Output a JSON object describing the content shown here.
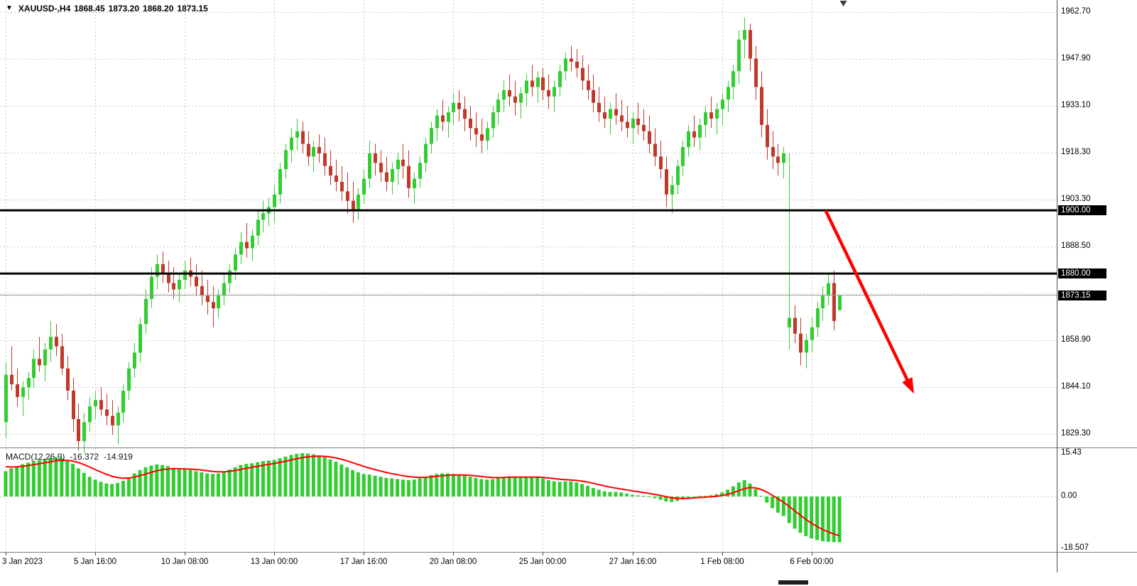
{
  "header": {
    "symbol_period": "XAUUSD-,H4",
    "open": "1868.45",
    "high": "1873.20",
    "low": "1868.20",
    "close": "1873.15"
  },
  "icons": {
    "one_click_collapse": "▼"
  },
  "chart_data": {
    "type": "candlestick",
    "symbol": "XAUUSD-",
    "timeframe": "H4",
    "ohlc_current": {
      "open": 1868.45,
      "high": 1873.2,
      "low": 1868.2,
      "close": 1873.15
    },
    "price_axis": {
      "labels": [
        "1962.70",
        "1947.90",
        "1933.10",
        "1918.30",
        "1903.30",
        "1888.50",
        "1858.90",
        "1844.10",
        "1829.30"
      ],
      "values": [
        1962.7,
        1947.9,
        1933.1,
        1918.3,
        1903.3,
        1888.5,
        1858.9,
        1844.1,
        1829.3
      ],
      "hidden_grid_value": 1873.7,
      "ylim": [
        1825.0,
        1966.5
      ]
    },
    "time_axis": {
      "labels": [
        {
          "text": "3 Jan 2023",
          "bar": 0
        },
        {
          "text": "5 Jan 16:00",
          "bar": 16
        },
        {
          "text": "10 Jan 08:00",
          "bar": 32
        },
        {
          "text": "13 Jan 00:00",
          "bar": 48
        },
        {
          "text": "17 Jan 16:00",
          "bar": 64
        },
        {
          "text": "20 Jan 08:00",
          "bar": 80
        },
        {
          "text": "25 Jan 00:00",
          "bar": 96
        },
        {
          "text": "27 Jan 16:00",
          "bar": 112
        },
        {
          "text": "1 Feb 08:00",
          "bar": 128
        },
        {
          "text": "6 Feb 00:00",
          "bar": 144
        }
      ]
    },
    "levels": [
      {
        "label": "1900.00",
        "price": 1900.0
      },
      {
        "label": "1880.00",
        "price": 1880.0
      }
    ],
    "current_price": {
      "label": "1873.15",
      "price": 1873.15
    },
    "candles": [
      [
        1833,
        1852,
        1828,
        1848
      ],
      [
        1848,
        1857,
        1843,
        1845
      ],
      [
        1845,
        1850,
        1838,
        1841
      ],
      [
        1841,
        1846,
        1835,
        1844
      ],
      [
        1844,
        1849,
        1840,
        1847
      ],
      [
        1847,
        1856,
        1844,
        1853
      ],
      [
        1853,
        1860,
        1849,
        1851
      ],
      [
        1851,
        1858,
        1846,
        1856
      ],
      [
        1856,
        1865,
        1852,
        1860
      ],
      [
        1860,
        1864,
        1854,
        1857
      ],
      [
        1857,
        1861,
        1848,
        1850
      ],
      [
        1850,
        1854,
        1840,
        1843
      ],
      [
        1843,
        1847,
        1830,
        1834
      ],
      [
        1834,
        1839,
        1824,
        1827
      ],
      [
        1827,
        1836,
        1823,
        1833
      ],
      [
        1833,
        1841,
        1830,
        1838
      ],
      [
        1838,
        1843,
        1834,
        1840
      ],
      [
        1840,
        1844,
        1835,
        1837
      ],
      [
        1837,
        1842,
        1832,
        1835
      ],
      [
        1835,
        1840,
        1829,
        1832
      ],
      [
        1832,
        1838,
        1826,
        1836
      ],
      [
        1836,
        1845,
        1833,
        1843
      ],
      [
        1843,
        1852,
        1840,
        1850
      ],
      [
        1850,
        1858,
        1847,
        1855
      ],
      [
        1855,
        1866,
        1852,
        1864
      ],
      [
        1864,
        1875,
        1861,
        1872
      ],
      [
        1872,
        1882,
        1869,
        1879
      ],
      [
        1879,
        1886,
        1875,
        1883
      ],
      [
        1883,
        1887,
        1877,
        1880
      ],
      [
        1880,
        1884,
        1874,
        1877
      ],
      [
        1877,
        1882,
        1872,
        1875
      ],
      [
        1875,
        1880,
        1871,
        1878
      ],
      [
        1878,
        1884,
        1875,
        1881
      ],
      [
        1881,
        1885,
        1876,
        1879
      ],
      [
        1879,
        1883,
        1873,
        1876
      ],
      [
        1876,
        1881,
        1870,
        1873
      ],
      [
        1873,
        1878,
        1867,
        1871
      ],
      [
        1871,
        1876,
        1863,
        1869
      ],
      [
        1869,
        1875,
        1866,
        1873
      ],
      [
        1873,
        1880,
        1870,
        1877
      ],
      [
        1877,
        1883,
        1874,
        1881
      ],
      [
        1881,
        1888,
        1878,
        1886
      ],
      [
        1886,
        1893,
        1883,
        1890
      ],
      [
        1890,
        1896,
        1885,
        1888
      ],
      [
        1888,
        1894,
        1884,
        1892
      ],
      [
        1892,
        1900,
        1889,
        1897
      ],
      [
        1897,
        1903,
        1893,
        1899
      ],
      [
        1899,
        1904,
        1895,
        1901
      ],
      [
        1901,
        1908,
        1896,
        1905
      ],
      [
        1905,
        1915,
        1902,
        1913
      ],
      [
        1913,
        1921,
        1910,
        1919
      ],
      [
        1919,
        1926,
        1915,
        1923
      ],
      [
        1923,
        1929,
        1919,
        1925
      ],
      [
        1925,
        1928,
        1918,
        1921
      ],
      [
        1921,
        1925,
        1914,
        1917
      ],
      [
        1917,
        1922,
        1912,
        1920
      ],
      [
        1920,
        1924,
        1915,
        1918
      ],
      [
        1918,
        1923,
        1911,
        1914
      ],
      [
        1914,
        1919,
        1908,
        1911
      ],
      [
        1911,
        1916,
        1906,
        1909
      ],
      [
        1909,
        1914,
        1903,
        1906
      ],
      [
        1906,
        1912,
        1899,
        1903
      ],
      [
        1903,
        1909,
        1896,
        1900
      ],
      [
        1900,
        1907,
        1897,
        1905
      ],
      [
        1905,
        1913,
        1902,
        1910
      ],
      [
        1910,
        1922,
        1907,
        1918
      ],
      [
        1918,
        1921,
        1911,
        1915
      ],
      [
        1915,
        1919,
        1909,
        1912
      ],
      [
        1912,
        1917,
        1906,
        1909
      ],
      [
        1909,
        1915,
        1905,
        1913
      ],
      [
        1913,
        1918,
        1908,
        1916
      ],
      [
        1916,
        1921,
        1910,
        1914
      ],
      [
        1914,
        1919,
        1904,
        1907
      ],
      [
        1907,
        1912,
        1902,
        1910
      ],
      [
        1910,
        1917,
        1907,
        1915
      ],
      [
        1915,
        1923,
        1912,
        1921
      ],
      [
        1921,
        1928,
        1918,
        1926
      ],
      [
        1926,
        1932,
        1922,
        1930
      ],
      [
        1930,
        1935,
        1925,
        1928
      ],
      [
        1928,
        1933,
        1923,
        1931
      ],
      [
        1931,
        1937,
        1927,
        1934
      ],
      [
        1934,
        1938,
        1928,
        1932
      ],
      [
        1932,
        1936,
        1925,
        1929
      ],
      [
        1929,
        1933,
        1922,
        1926
      ],
      [
        1926,
        1931,
        1920,
        1924
      ],
      [
        1924,
        1929,
        1918,
        1922
      ],
      [
        1922,
        1928,
        1919,
        1926
      ],
      [
        1926,
        1933,
        1923,
        1931
      ],
      [
        1931,
        1937,
        1927,
        1935
      ],
      [
        1935,
        1941,
        1931,
        1938
      ],
      [
        1938,
        1943,
        1933,
        1936
      ],
      [
        1936,
        1941,
        1930,
        1934
      ],
      [
        1934,
        1939,
        1929,
        1937
      ],
      [
        1937,
        1943,
        1933,
        1941
      ],
      [
        1941,
        1946,
        1936,
        1939
      ],
      [
        1939,
        1944,
        1934,
        1942
      ],
      [
        1942,
        1945,
        1935,
        1938
      ],
      [
        1938,
        1943,
        1932,
        1936
      ],
      [
        1936,
        1941,
        1931,
        1939
      ],
      [
        1939,
        1946,
        1936,
        1944
      ],
      [
        1944,
        1950,
        1941,
        1948
      ],
      [
        1948,
        1952,
        1944,
        1947
      ],
      [
        1947,
        1951,
        1942,
        1945
      ],
      [
        1945,
        1949,
        1938,
        1941
      ],
      [
        1941,
        1946,
        1935,
        1938
      ],
      [
        1938,
        1943,
        1931,
        1934
      ],
      [
        1934,
        1939,
        1928,
        1931
      ],
      [
        1931,
        1936,
        1926,
        1929
      ],
      [
        1929,
        1934,
        1924,
        1932
      ],
      [
        1932,
        1937,
        1927,
        1930
      ],
      [
        1930,
        1935,
        1925,
        1928
      ],
      [
        1928,
        1933,
        1923,
        1926
      ],
      [
        1926,
        1931,
        1921,
        1929
      ],
      [
        1929,
        1934,
        1924,
        1927
      ],
      [
        1927,
        1932,
        1922,
        1925
      ],
      [
        1925,
        1930,
        1918,
        1921
      ],
      [
        1921,
        1926,
        1914,
        1917
      ],
      [
        1917,
        1922,
        1910,
        1913
      ],
      [
        1913,
        1917,
        1901,
        1905
      ],
      [
        1905,
        1911,
        1899,
        1908
      ],
      [
        1908,
        1916,
        1905,
        1914
      ],
      [
        1914,
        1922,
        1911,
        1920
      ],
      [
        1920,
        1927,
        1917,
        1925
      ],
      [
        1925,
        1930,
        1920,
        1923
      ],
      [
        1923,
        1929,
        1919,
        1927
      ],
      [
        1927,
        1933,
        1923,
        1931
      ],
      [
        1931,
        1936,
        1926,
        1929
      ],
      [
        1929,
        1934,
        1924,
        1932
      ],
      [
        1932,
        1937,
        1927,
        1935
      ],
      [
        1935,
        1941,
        1931,
        1939
      ],
      [
        1939,
        1946,
        1935,
        1944
      ],
      [
        1944,
        1957,
        1940,
        1954
      ],
      [
        1954,
        1961,
        1948,
        1957
      ],
      [
        1957,
        1959,
        1944,
        1948
      ],
      [
        1948,
        1952,
        1935,
        1939
      ],
      [
        1939,
        1944,
        1923,
        1927
      ],
      [
        1927,
        1932,
        1916,
        1920
      ],
      [
        1920,
        1925,
        1913,
        1917
      ],
      [
        1917,
        1921,
        1911,
        1915
      ],
      [
        1915,
        1920,
        1910,
        1918
      ],
      [
        1863,
        1918,
        1856,
        1866
      ],
      [
        1866,
        1870,
        1858,
        1861
      ],
      [
        1861,
        1866,
        1851,
        1855
      ],
      [
        1855,
        1861,
        1850,
        1859
      ],
      [
        1859,
        1866,
        1855,
        1863
      ],
      [
        1863,
        1871,
        1860,
        1869
      ],
      [
        1869,
        1876,
        1865,
        1873
      ],
      [
        1873,
        1880,
        1870,
        1877
      ],
      [
        1877,
        1881,
        1862,
        1865
      ],
      [
        1868.45,
        1873.2,
        1868.2,
        1873.15
      ]
    ],
    "macd": {
      "title": "MACD(12,26,9)",
      "macd_value": "-16.372",
      "signal_value": "-14.919",
      "axis_labels": [
        "15.43",
        "0.00",
        "-18.507"
      ],
      "axis_values": [
        15.43,
        0,
        -18.507
      ],
      "ylim": [
        -18.507,
        15.43
      ],
      "signal_period": 9,
      "signal_seed": 11.0,
      "histogram": [
        9.0,
        10.0,
        10.8,
        11.5,
        12.0,
        12.6,
        13.0,
        13.4,
        13.8,
        14.0,
        13.6,
        12.8,
        11.6,
        10.0,
        8.4,
        7.0,
        6.0,
        5.2,
        4.6,
        4.4,
        4.8,
        5.6,
        6.8,
        8.2,
        9.4,
        10.4,
        11.0,
        11.4,
        11.2,
        10.8,
        10.2,
        9.8,
        9.6,
        9.4,
        9.0,
        8.6,
        8.2,
        8.0,
        8.2,
        8.8,
        9.6,
        10.4,
        11.2,
        11.6,
        11.8,
        12.2,
        12.6,
        12.8,
        13.0,
        13.6,
        14.2,
        14.8,
        15.2,
        15.43,
        15.3,
        15.0,
        14.6,
        14.0,
        13.2,
        12.4,
        11.4,
        10.4,
        9.4,
        8.6,
        8.0,
        7.8,
        7.4,
        7.0,
        6.6,
        6.4,
        6.2,
        6.0,
        5.8,
        6.0,
        6.4,
        7.0,
        7.6,
        8.0,
        8.2,
        8.2,
        8.0,
        7.8,
        7.4,
        7.0,
        6.6,
        6.2,
        6.0,
        6.2,
        6.6,
        7.0,
        7.2,
        7.0,
        6.8,
        6.8,
        7.0,
        6.8,
        6.4,
        5.8,
        5.4,
        5.2,
        5.4,
        5.4,
        5.0,
        4.4,
        3.8,
        3.0,
        2.4,
        1.8,
        1.6,
        1.6,
        1.4,
        1.0,
        0.6,
        0.4,
        0.2,
        -0.2,
        -0.6,
        -1.2,
        -1.8,
        -2.0,
        -1.6,
        -1.0,
        -0.4,
        0.0,
        0.2,
        0.2,
        0.4,
        0.8,
        1.4,
        2.4,
        3.6,
        5.0,
        5.8,
        4.6,
        2.6,
        0.2,
        -2.2,
        -4.2,
        -5.8,
        -7.0,
        -9.5,
        -11.5,
        -13.0,
        -14.2,
        -15.0,
        -15.6,
        -16.0,
        -16.2,
        -16.3,
        -16.372
      ]
    },
    "annotation_arrow": {
      "from_bar": 146.5,
      "from_price": 1900,
      "to_bar": 162.3,
      "to_price": 1842,
      "color": "#FF0000"
    },
    "shift_marker_bar": 149.7,
    "colors": {
      "bull": "#32CD32",
      "bear": "#C0392B",
      "grid": "#C9C9C9",
      "hline": "#000000",
      "current_price_line": "#9A9A9A",
      "hist": "#32CD32",
      "signal": "#FF0000",
      "axis_text": "#000000",
      "marker_bg": "#000000",
      "marker_text": "#FFFFFF"
    }
  }
}
